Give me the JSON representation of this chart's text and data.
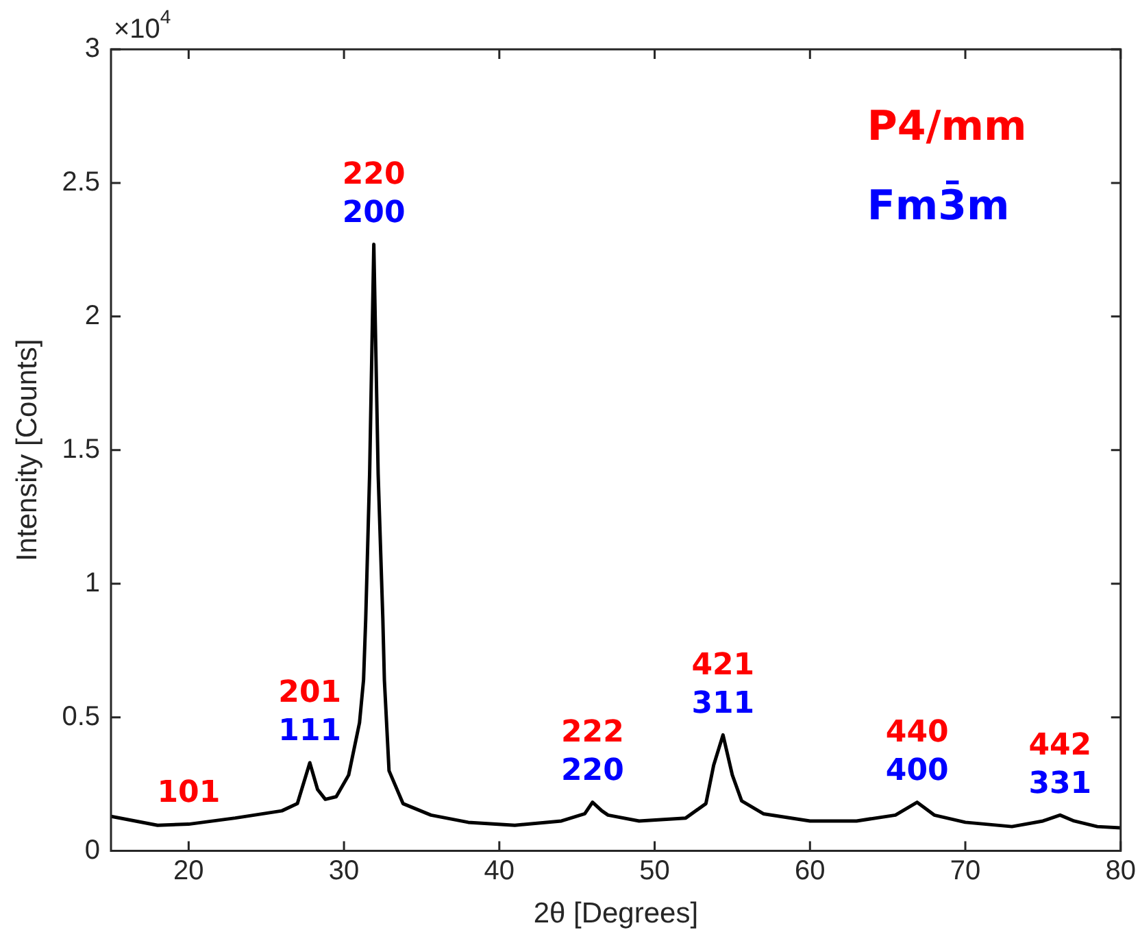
{
  "chart_data": {
    "type": "line",
    "xlabel": "2θ [Degrees]",
    "ylabel": "Intensity [Counts]",
    "series": [
      {
        "color": "#000000",
        "x": [
          15,
          18,
          20,
          23,
          26,
          27,
          27.8,
          28.3,
          28.8,
          29.5,
          30.3,
          31,
          31.26,
          31.4,
          31.65,
          31.92,
          32.2,
          32.5,
          32.6,
          32.9,
          33.8,
          35.6,
          38,
          41,
          44,
          45.5,
          46,
          46.6,
          47,
          49,
          52,
          53.3,
          53.8,
          54.4,
          55,
          55.6,
          57,
          60,
          63,
          65.5,
          66.9,
          68,
          70,
          73,
          75,
          76.1,
          77,
          78.5,
          80
        ],
        "values": [
          0.129,
          0.096,
          0.1,
          0.123,
          0.15,
          0.177,
          0.33,
          0.23,
          0.193,
          0.203,
          0.284,
          0.48,
          0.64,
          0.87,
          1.41,
          2.27,
          1.41,
          0.87,
          0.64,
          0.3,
          0.177,
          0.134,
          0.107,
          0.096,
          0.112,
          0.139,
          0.182,
          0.15,
          0.134,
          0.112,
          0.123,
          0.177,
          0.321,
          0.434,
          0.284,
          0.187,
          0.139,
          0.112,
          0.112,
          0.134,
          0.182,
          0.134,
          0.107,
          0.091,
          0.112,
          0.134,
          0.112,
          0.091,
          0.086
        ]
      }
    ],
    "xlim": [
      15,
      80
    ],
    "xticks": [
      20,
      30,
      40,
      50,
      60,
      70,
      80
    ],
    "ylim": [
      0,
      3
    ],
    "yticks": [
      0,
      0.5,
      1,
      1.5,
      2,
      2.5,
      3
    ],
    "grid": false,
    "legend": false,
    "marker": "none",
    "line_style": "solid",
    "annotations": [
      "×10$^{4}$",
      "P4/mm",
      {
        "text": "101",
        "x": 20,
        "y": 0.1
      },
      {
        "text": "201",
        "x": 27.8,
        "y": 0.33
      },
      {
        "text": "220",
        "x": 31.92,
        "y": 2.27
      },
      {
        "text": "222",
        "x": 46,
        "y": 0.182
      },
      {
        "text": "421",
        "x": 54.4,
        "y": 0.434
      },
      {
        "text": "440",
        "x": 66.9,
        "y": 0.182
      },
      {
        "text": "442",
        "x": 76.1,
        "y": 0.134
      },
      "Fm3̄m",
      {
        "text": "111",
        "x": 27.8,
        "y": 0.33
      },
      {
        "text": "200",
        "x": 31.92,
        "y": 2.27
      },
      {
        "text": "220",
        "x": 46,
        "y": 0.182
      },
      {
        "text": "311",
        "x": 54.4,
        "y": 0.434
      },
      {
        "text": "400",
        "x": 66.9,
        "y": 0.182
      },
      {
        "text": "331",
        "x": 76.1,
        "y": 0.134
      }
    ]
  }
}
